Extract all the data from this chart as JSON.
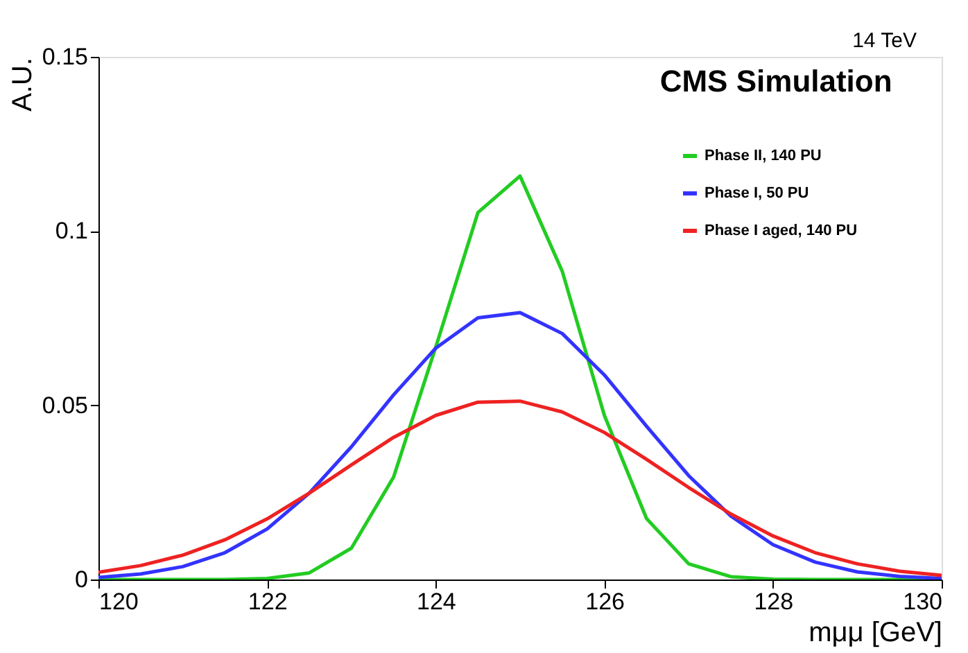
{
  "chart_data": {
    "type": "line",
    "xlabel": "mμμ [GeV]",
    "ylabel": "A.U.",
    "annotations": [
      "CMS Simulation",
      "14 TeV"
    ],
    "xlim": [
      120,
      130
    ],
    "xticks": [
      120,
      122,
      124,
      126,
      128,
      130
    ],
    "ylim": [
      0,
      0.15
    ],
    "yticks": [
      0,
      0.05,
      0.1,
      0.15
    ],
    "grid": false,
    "legend": "top right",
    "marker": "none",
    "line_style": "solid",
    "x": [
      120,
      120.5,
      121,
      121.5,
      122,
      122.5,
      123,
      123.5,
      124,
      124.5,
      125,
      125.5,
      126,
      126.5,
      127,
      127.5,
      128,
      128.5,
      129,
      129.5,
      130
    ],
    "series": [
      {
        "name": "Phase II, 140 PU",
        "color": "#22cc22",
        "values": [
          0,
          0,
          0,
          0,
          0.0003,
          0.0019,
          0.009,
          0.0294,
          0.0667,
          0.1053,
          0.1158,
          0.0885,
          0.0471,
          0.0175,
          0.0045,
          0.0008,
          0.0001,
          0,
          0,
          0,
          0
        ]
      },
      {
        "name": "Phase I, 50 PU",
        "color": "#3333ff",
        "values": [
          0.0006,
          0.0016,
          0.0037,
          0.0077,
          0.0145,
          0.0248,
          0.0381,
          0.053,
          0.0664,
          0.0751,
          0.0766,
          0.0706,
          0.0587,
          0.044,
          0.0298,
          0.0182,
          0.01,
          0.005,
          0.0022,
          0.0009,
          0.0003
        ]
      },
      {
        "name": "Phase I aged, 140 PU",
        "color": "#ee2222",
        "values": [
          0.0021,
          0.004,
          0.007,
          0.0114,
          0.0174,
          0.0248,
          0.0329,
          0.0408,
          0.0471,
          0.0509,
          0.0512,
          0.0481,
          0.0422,
          0.0345,
          0.0264,
          0.0188,
          0.0125,
          0.0077,
          0.0045,
          0.0024,
          0.0012
        ]
      }
    ]
  }
}
